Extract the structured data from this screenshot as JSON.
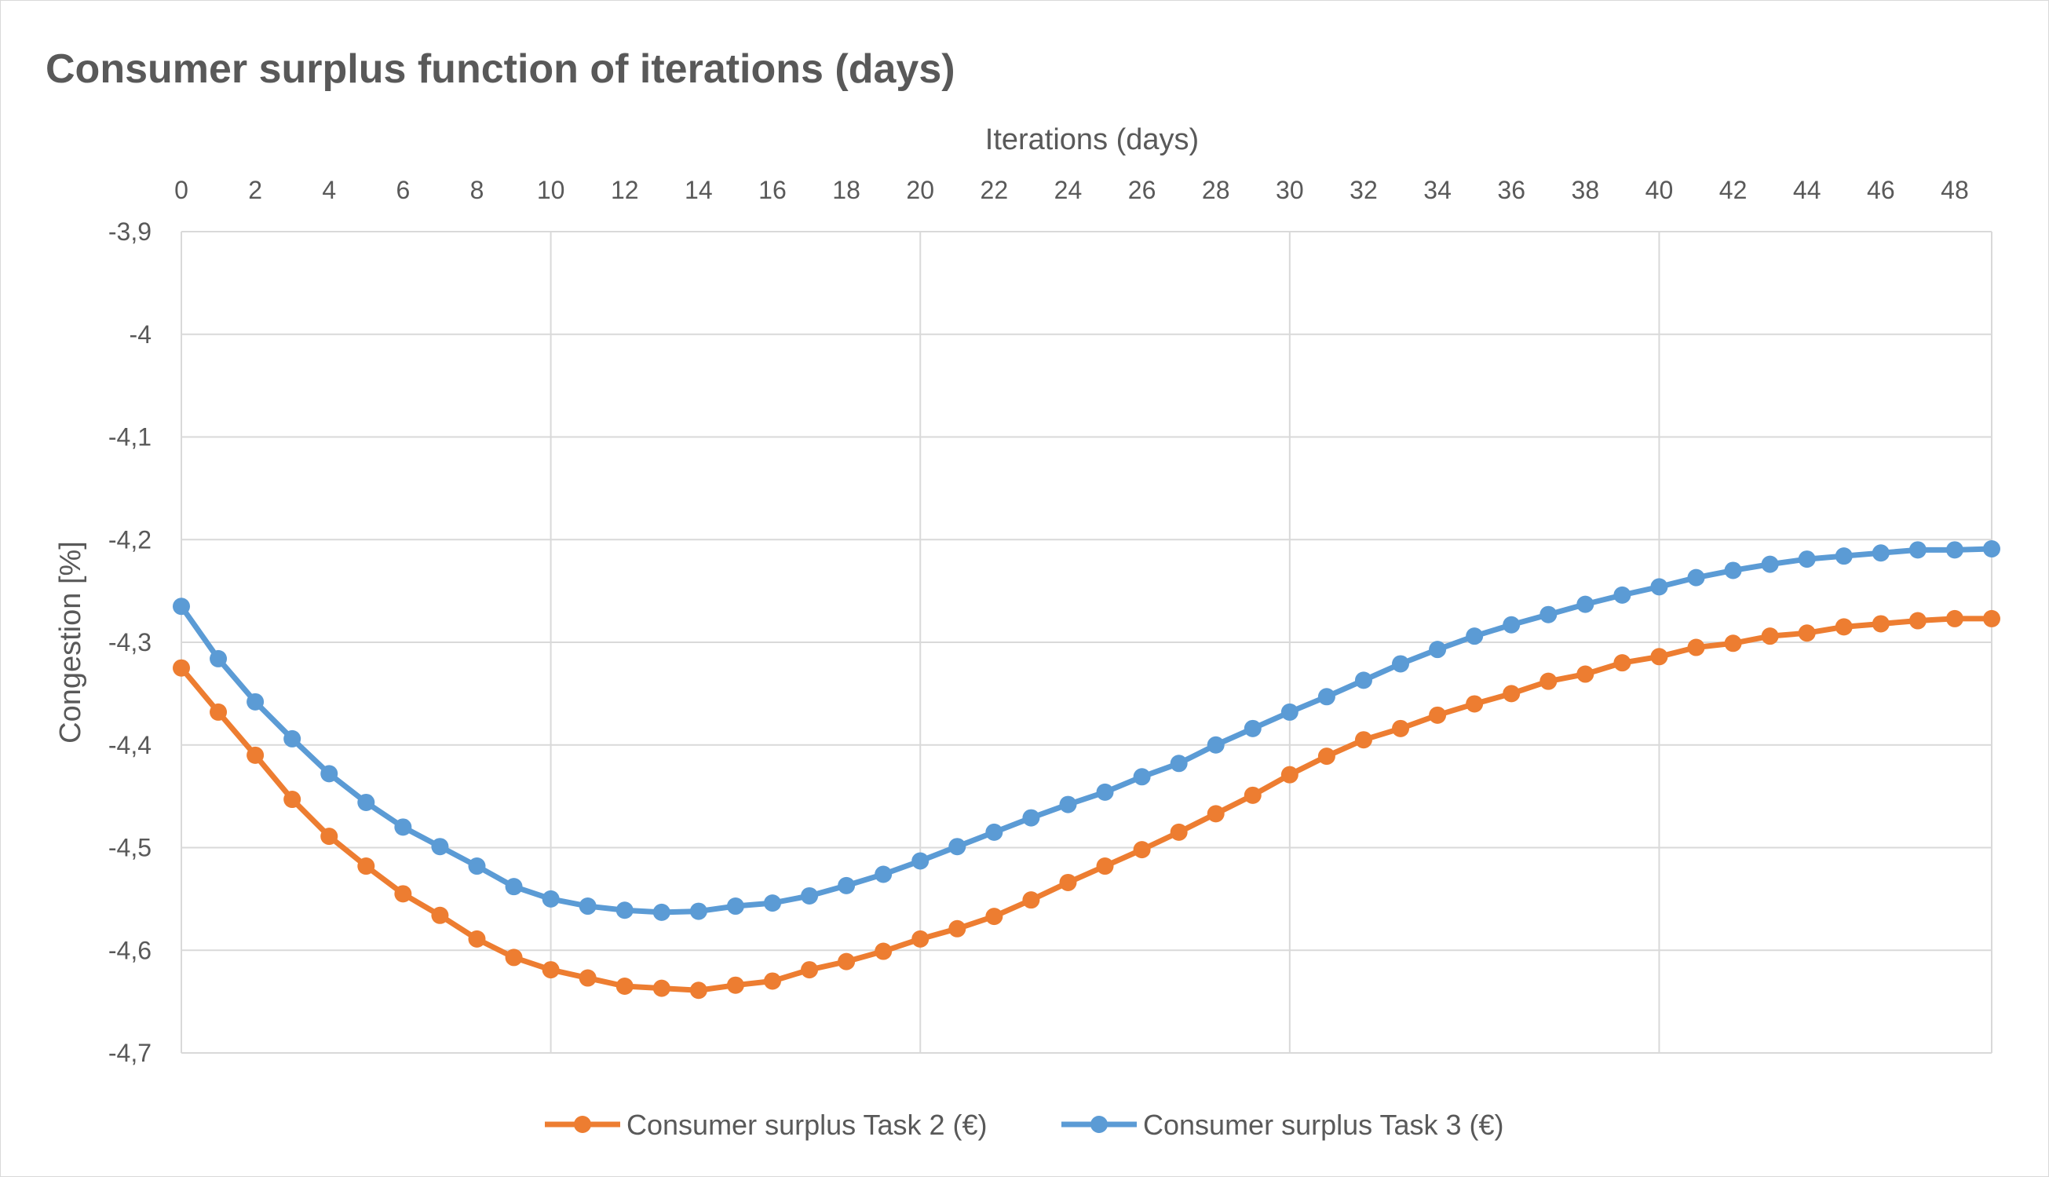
{
  "chart_data": {
    "type": "line",
    "title": "Consumer surplus function of iterations (days)",
    "xlabel": "Iterations (days)",
    "ylabel": "Congestion [%]",
    "x": [
      0,
      1,
      2,
      3,
      4,
      5,
      6,
      7,
      8,
      9,
      10,
      11,
      12,
      13,
      14,
      15,
      16,
      17,
      18,
      19,
      20,
      21,
      22,
      23,
      24,
      25,
      26,
      27,
      28,
      29,
      30,
      31,
      32,
      33,
      34,
      35,
      36,
      37,
      38,
      39,
      40,
      41,
      42,
      43,
      44,
      45,
      46,
      47,
      48,
      49
    ],
    "x_tick_labels": [
      "0",
      "2",
      "4",
      "6",
      "8",
      "10",
      "12",
      "14",
      "16",
      "18",
      "20",
      "22",
      "24",
      "26",
      "28",
      "30",
      "32",
      "34",
      "36",
      "38",
      "40",
      "42",
      "44",
      "46",
      "48"
    ],
    "x_tick_values": [
      0,
      2,
      4,
      6,
      8,
      10,
      12,
      14,
      16,
      18,
      20,
      22,
      24,
      26,
      28,
      30,
      32,
      34,
      36,
      38,
      40,
      42,
      44,
      46,
      48
    ],
    "y_tick_labels": [
      "-3,9",
      "-4",
      "-4,1",
      "-4,2",
      "-4,3",
      "-4,4",
      "-4,5",
      "-4,6",
      "-4,7"
    ],
    "y_tick_values": [
      -3.9,
      -4.0,
      -4.1,
      -4.2,
      -4.3,
      -4.4,
      -4.5,
      -4.6,
      -4.7
    ],
    "xlim": [
      0,
      49
    ],
    "ylim": [
      -4.7,
      -3.9
    ],
    "x_axis_position": "top",
    "grid": "vertical every 10, horizontal every 0.1",
    "legend_position": "bottom",
    "series": [
      {
        "name": "Consumer surplus Task 2 (€)",
        "color": "#ED7D31",
        "values": [
          -4.325,
          -4.368,
          -4.41,
          -4.453,
          -4.489,
          -4.518,
          -4.545,
          -4.566,
          -4.589,
          -4.607,
          -4.619,
          -4.627,
          -4.635,
          -4.637,
          -4.639,
          -4.634,
          -4.63,
          -4.619,
          -4.611,
          -4.601,
          -4.589,
          -4.579,
          -4.567,
          -4.551,
          -4.534,
          -4.518,
          -4.502,
          -4.485,
          -4.467,
          -4.449,
          -4.429,
          -4.411,
          -4.395,
          -4.384,
          -4.371,
          -4.36,
          -4.35,
          -4.338,
          -4.331,
          -4.32,
          -4.314,
          -4.305,
          -4.301,
          -4.294,
          -4.291,
          -4.285,
          -4.282,
          -4.279,
          -4.277,
          -4.277
        ]
      },
      {
        "name": "Consumer surplus Task 3 (€)",
        "color": "#5B9BD5",
        "values": [
          -4.265,
          -4.316,
          -4.358,
          -4.394,
          -4.428,
          -4.456,
          -4.48,
          -4.499,
          -4.518,
          -4.538,
          -4.55,
          -4.557,
          -4.561,
          -4.563,
          -4.562,
          -4.557,
          -4.554,
          -4.547,
          -4.537,
          -4.526,
          -4.513,
          -4.499,
          -4.485,
          -4.471,
          -4.458,
          -4.446,
          -4.431,
          -4.418,
          -4.4,
          -4.384,
          -4.368,
          -4.353,
          -4.337,
          -4.321,
          -4.307,
          -4.294,
          -4.283,
          -4.273,
          -4.263,
          -4.254,
          -4.246,
          -4.237,
          -4.23,
          -4.224,
          -4.219,
          -4.216,
          -4.213,
          -4.21,
          -4.21,
          -4.209
        ]
      }
    ]
  }
}
